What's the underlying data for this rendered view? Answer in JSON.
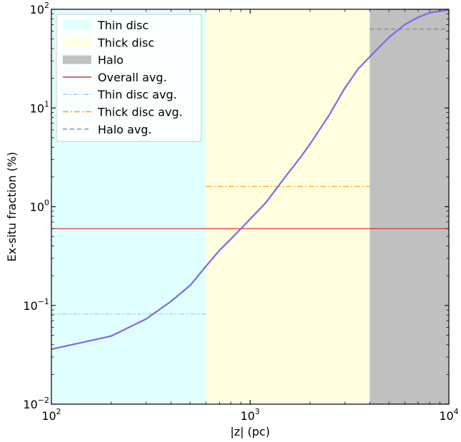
{
  "chart_data": {
    "type": "line",
    "xlabel": "|z| (pc)",
    "ylabel": "Ex-situ fraction (%)",
    "xscale": "log",
    "yscale": "log",
    "xlim": [
      100,
      10000
    ],
    "ylim": [
      0.01,
      100
    ],
    "x_ticks": [
      {
        "value": 100,
        "base": "10",
        "exp": "2"
      },
      {
        "value": 1000,
        "base": "10",
        "exp": "3"
      },
      {
        "value": 10000,
        "base": "10",
        "exp": "4"
      }
    ],
    "y_ticks": [
      {
        "value": 0.01,
        "base": "10",
        "exp": "−2"
      },
      {
        "value": 0.1,
        "base": "10",
        "exp": "−1"
      },
      {
        "value": 1,
        "base": "10",
        "exp": "0"
      },
      {
        "value": 10,
        "base": "10",
        "exp": "1"
      },
      {
        "value": 100,
        "base": "10",
        "exp": "2"
      }
    ],
    "grid": false,
    "legend_position": "top-left",
    "regions": [
      {
        "name": "Thin disc",
        "x_range": [
          100,
          600
        ],
        "color": "#e0ffff"
      },
      {
        "name": "Thick disc",
        "x_range": [
          600,
          4000
        ],
        "color": "#ffffe0"
      },
      {
        "name": "Halo",
        "x_range": [
          4000,
          10000
        ],
        "color": "#c0c0c0"
      }
    ],
    "series": [
      {
        "color": "#7b68ee",
        "style": "solid",
        "x": [
          100,
          200,
          300,
          400,
          500,
          600,
          700,
          800,
          900,
          1000,
          1200,
          1500,
          1800,
          2000,
          2500,
          3000,
          3500,
          4000,
          4500,
          5000,
          6000,
          7000,
          8000,
          9000,
          10000
        ],
        "y": [
          0.036,
          0.049,
          0.073,
          0.11,
          0.16,
          0.25,
          0.36,
          0.47,
          0.6,
          0.75,
          1.1,
          2.0,
          3.2,
          4.3,
          8.5,
          16,
          25,
          33,
          42,
          52,
          70,
          83,
          92,
          96,
          98
        ]
      }
    ],
    "hlines": [
      {
        "name": "Overall avg.",
        "y": 0.6,
        "x_range": [
          100,
          10000
        ],
        "color": "#dd2222",
        "style": "solid"
      },
      {
        "name": "Thin disc avg.",
        "y": 0.082,
        "x_range": [
          100,
          600
        ],
        "color": "#87ceeb",
        "style": "dashdotdot"
      },
      {
        "name": "Thick disc avg.",
        "y": 1.6,
        "x_range": [
          600,
          4000
        ],
        "color": "#ffa500",
        "style": "dashdot"
      },
      {
        "name": "Halo avg.",
        "y": 63,
        "x_range": [
          4000,
          10000
        ],
        "color": "#6f8ca8",
        "style": "dashed"
      }
    ],
    "legend": [
      {
        "label": "Thin disc",
        "kind": "patch",
        "color": "#e0ffff"
      },
      {
        "label": "Thick disc",
        "kind": "patch",
        "color": "#ffffe0"
      },
      {
        "label": "Halo",
        "kind": "patch",
        "color": "#c0c0c0"
      },
      {
        "label": "Overall avg.",
        "kind": "line",
        "color": "#dd2222",
        "style": "solid"
      },
      {
        "label": "Thin disc avg.",
        "kind": "line",
        "color": "#87ceeb",
        "style": "dashdotdot"
      },
      {
        "label": "Thick disc avg.",
        "kind": "line",
        "color": "#ffa500",
        "style": "dashdot"
      },
      {
        "label": "Halo avg.",
        "kind": "line",
        "color": "#6f8ca8",
        "style": "dashed"
      }
    ]
  }
}
